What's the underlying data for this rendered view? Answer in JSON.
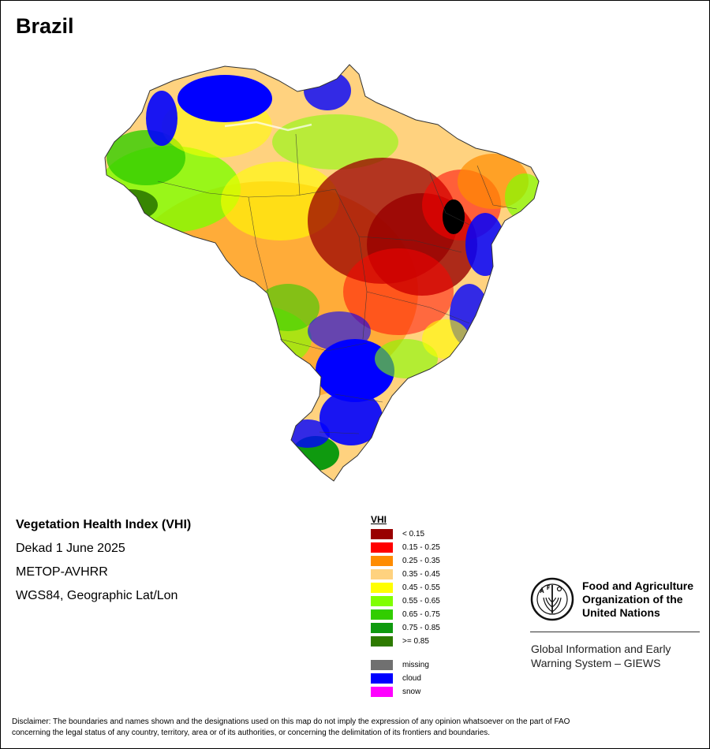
{
  "map": {
    "title": "Brazil"
  },
  "info": {
    "index_name": "Vegetation Health Index (VHI)",
    "period": "Dekad 1 June 2025",
    "sensor": "METOP-AVHRR",
    "projection": "WGS84, Geographic Lat/Lon"
  },
  "legend": {
    "title": "VHI",
    "classes": [
      {
        "label": "< 0.15",
        "color": "#990000"
      },
      {
        "label": "0.15 - 0.25",
        "color": "#ff0000"
      },
      {
        "label": "0.25 - 0.35",
        "color": "#ff8c00"
      },
      {
        "label": "0.35 - 0.45",
        "color": "#ffd27f"
      },
      {
        "label": "0.45 - 0.55",
        "color": "#ffff00"
      },
      {
        "label": "0.55 - 0.65",
        "color": "#80ff00"
      },
      {
        "label": "0.65 - 0.75",
        "color": "#32cd00"
      },
      {
        "label": "0.75 - 0.85",
        "color": "#0f9a0f"
      },
      {
        "label": ">= 0.85",
        "color": "#2d7a00"
      }
    ],
    "extra": [
      {
        "label": "missing",
        "color": "#707070"
      },
      {
        "label": "cloud",
        "color": "#0000ff"
      },
      {
        "label": "snow",
        "color": "#ff00ff"
      }
    ]
  },
  "fao": {
    "name_lines": [
      "Food and Agriculture",
      "Organization of the",
      "United Nations"
    ],
    "giews_lines": [
      "Global Information and Early",
      "Warning System – GIEWS"
    ]
  },
  "disclaimer": {
    "lines": [
      "Disclaimer: The boundaries and names shown and the designations used on this map do not imply the expression of any opinion whatsoever on the part of FAO",
      "concerning the legal status of any country, territory, area or of its authorities, or concerning the delimitation of its frontiers and boundaries."
    ]
  }
}
